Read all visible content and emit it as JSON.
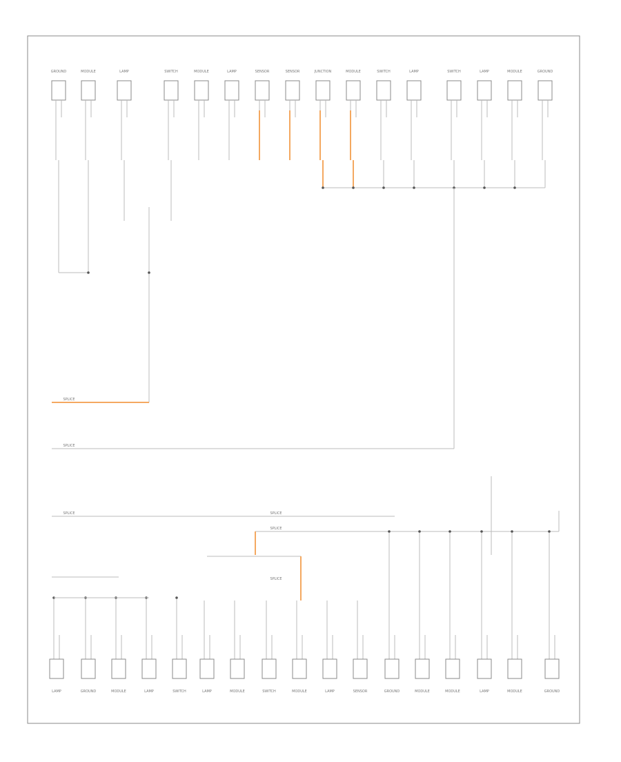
{
  "diagram": {
    "top_components": [
      "GROUND",
      "MODULE",
      "LAMP",
      "SWITCH",
      "MODULE",
      "LAMP",
      "SENSOR",
      "SENSOR",
      "JUNCTION",
      "MODULE",
      "SWITCH",
      "LAMP",
      "SWITCH",
      "LAMP",
      "MODULE",
      "GROUND"
    ],
    "bottom_components": [
      "LAMP",
      "GROUND",
      "MODULE",
      "LAMP",
      "SWITCH",
      "LAMP",
      "MODULE",
      "SWITCH",
      "MODULE",
      "LAMP",
      "SENSOR",
      "GROUND",
      "MODULE",
      "MODULE",
      "LAMP",
      "MODULE",
      "GROUND"
    ],
    "splices": [
      "SPLICE",
      "SPLICE",
      "SPLICE",
      "SPLICE",
      "SPLICE",
      "SPLICE"
    ]
  }
}
